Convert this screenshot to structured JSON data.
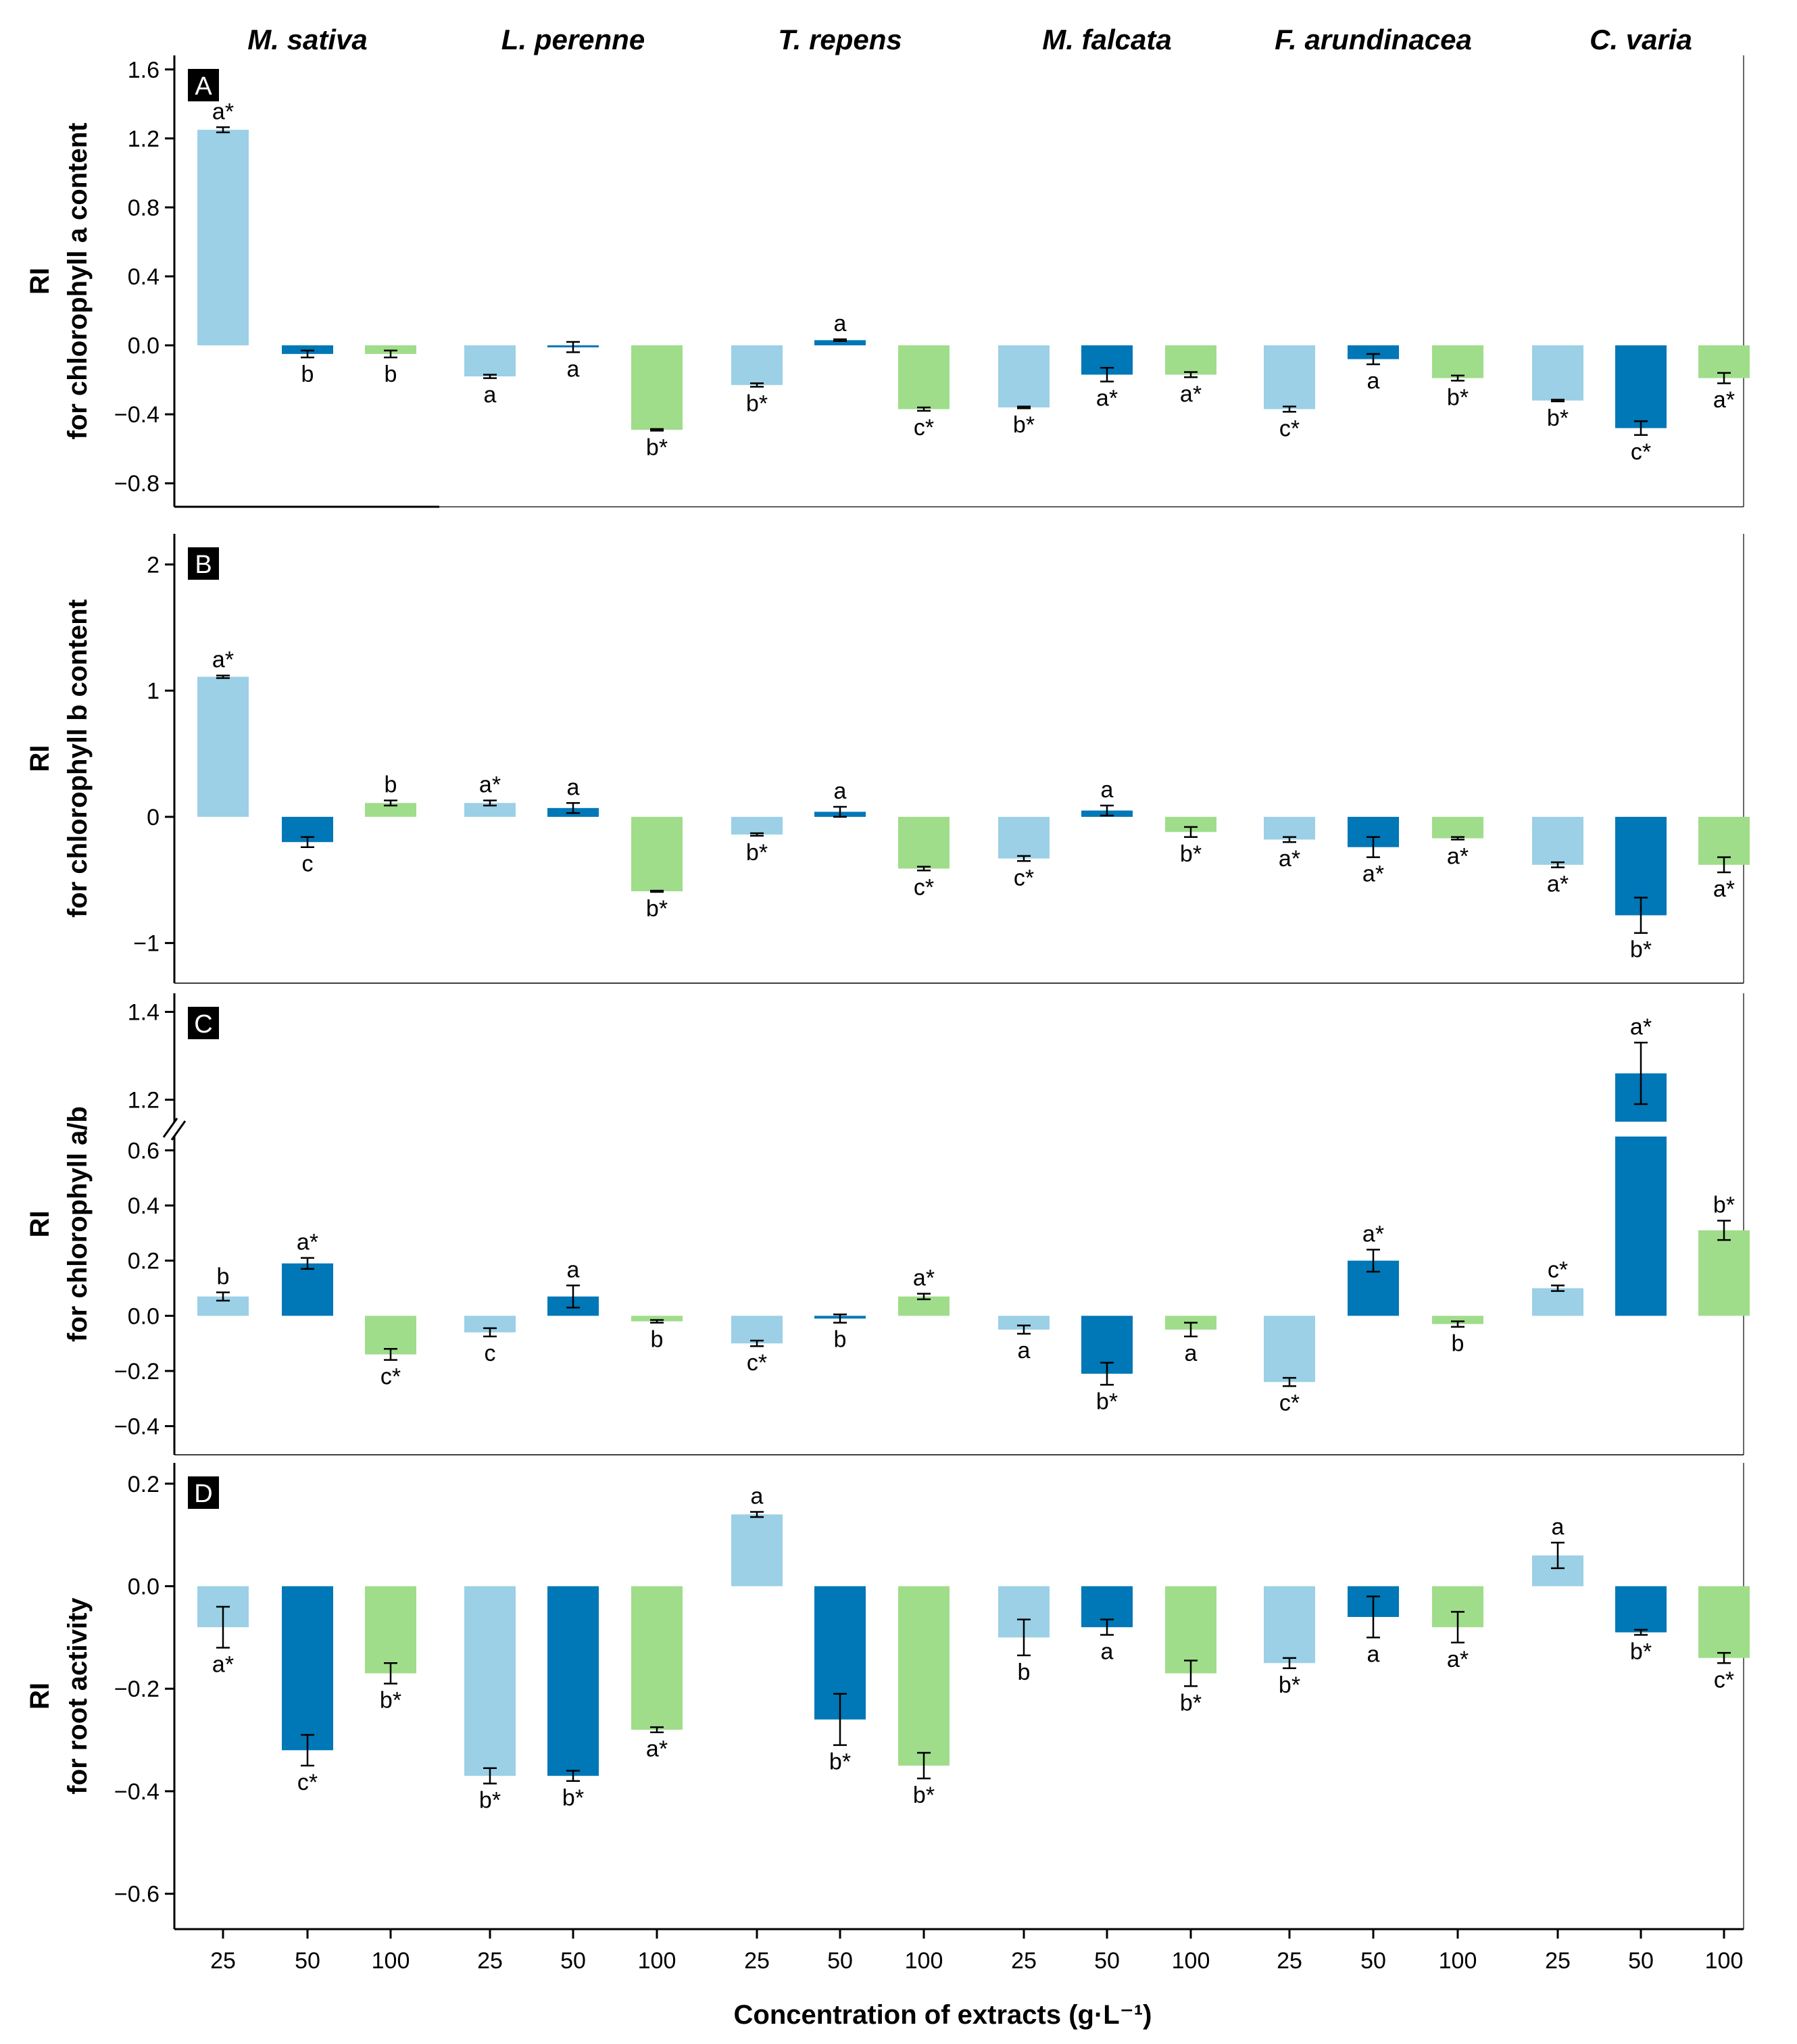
{
  "species": [
    "M. sativa",
    "L. perenne",
    "T. repens",
    "M. falcata",
    "F. arundinacea",
    "C. varia"
  ],
  "concentrations": [
    "25",
    "50",
    "100"
  ],
  "x_axis_label": "Concentration of extracts (g·L⁻¹)",
  "colors": {
    "c25": "#9bd0e6",
    "c50": "#0077b6",
    "c100": "#9fdd8a"
  },
  "chart_data": [
    {
      "type": "bar",
      "panel": "A",
      "ylabel": [
        "RI",
        "for chlorophyll a content"
      ],
      "ylim": [
        -0.85,
        1.65
      ],
      "yticks": [
        "1.6",
        "1.2",
        "0.8",
        "0.4",
        "0.0",
        "−0.4",
        "−0.8"
      ],
      "ytick_values": [
        1.6,
        1.2,
        0.8,
        0.4,
        0.0,
        -0.4,
        -0.8
      ],
      "values": [
        1.25,
        -0.05,
        -0.05,
        -0.18,
        -0.01,
        -0.49,
        -0.23,
        0.03,
        -0.37,
        -0.36,
        -0.17,
        -0.17,
        -0.37,
        -0.08,
        -0.19,
        -0.32,
        -0.48,
        -0.19
      ],
      "errors": [
        0.015,
        0.02,
        0.02,
        0.01,
        0.03,
        0.005,
        0.01,
        0.005,
        0.01,
        0.005,
        0.04,
        0.015,
        0.015,
        0.03,
        0.015,
        0.005,
        0.04,
        0.03
      ],
      "labels": [
        "a*",
        "b",
        "b",
        "a",
        "a",
        "b*",
        "b*",
        "a",
        "c*",
        "b*",
        "a*",
        "a*",
        "c*",
        "a",
        "b*",
        "b*",
        "c*",
        "a*"
      ]
    },
    {
      "type": "bar",
      "panel": "B",
      "ylabel": [
        "RI",
        "for chlorophyll b content"
      ],
      "ylim": [
        -1.2,
        2.2
      ],
      "yticks": [
        "2",
        "1",
        "0",
        "−1"
      ],
      "ytick_values": [
        2,
        1,
        0,
        -1
      ],
      "values": [
        1.11,
        -0.2,
        0.11,
        0.11,
        0.07,
        -0.59,
        -0.14,
        0.04,
        -0.41,
        -0.33,
        0.05,
        -0.12,
        -0.18,
        -0.24,
        -0.17,
        -0.38,
        -0.78,
        -0.38
      ],
      "errors": [
        0.01,
        0.04,
        0.02,
        0.02,
        0.04,
        0.005,
        0.01,
        0.04,
        0.015,
        0.02,
        0.04,
        0.04,
        0.02,
        0.08,
        0.01,
        0.02,
        0.14,
        0.06
      ],
      "labels": [
        "a*",
        "c",
        "b",
        "a*",
        "a",
        "b*",
        "b*",
        "a",
        "c*",
        "c*",
        "a",
        "b*",
        "a*",
        "a*",
        "a*",
        "a*",
        "b*",
        "a*"
      ]
    },
    {
      "type": "bar",
      "panel": "C",
      "ylabel": [
        "RI",
        "for chlorophyll a/b"
      ],
      "broken_axis": {
        "lower_max": 0.65,
        "upper_min": 1.15
      },
      "ylim": [
        -0.45,
        1.43
      ],
      "yticks": [
        "1.4",
        "1.2",
        "0.6",
        "0.4",
        "0.2",
        "0.0",
        "−0.2",
        "−0.4"
      ],
      "ytick_values": [
        1.4,
        1.2,
        0.6,
        0.4,
        0.2,
        0.0,
        -0.2,
        -0.4
      ],
      "values": [
        0.07,
        0.19,
        -0.14,
        -0.06,
        0.07,
        -0.02,
        -0.1,
        -0.01,
        0.07,
        -0.05,
        -0.21,
        -0.05,
        -0.24,
        0.2,
        -0.03,
        0.1,
        1.26,
        0.31
      ],
      "errors": [
        0.015,
        0.02,
        0.02,
        0.015,
        0.04,
        0.005,
        0.01,
        0.015,
        0.01,
        0.015,
        0.04,
        0.025,
        0.015,
        0.04,
        0.01,
        0.01,
        0.07,
        0.035
      ],
      "labels": [
        "b",
        "a*",
        "c*",
        "c",
        "a",
        "b",
        "c*",
        "b",
        "a*",
        "a",
        "b*",
        "a",
        "c*",
        "a*",
        "b",
        "c*",
        "a*",
        "b*"
      ]
    },
    {
      "type": "bar",
      "panel": "D",
      "ylabel": [
        "RI",
        "for root activity"
      ],
      "ylim": [
        -0.64,
        0.23
      ],
      "yticks": [
        "0.2",
        "0.0",
        "−0.2",
        "−0.4",
        "−0.6"
      ],
      "ytick_values": [
        0.2,
        0.0,
        -0.2,
        -0.4,
        -0.6
      ],
      "values": [
        -0.08,
        -0.32,
        -0.17,
        -0.37,
        -0.37,
        -0.28,
        0.14,
        -0.26,
        -0.35,
        -0.1,
        -0.08,
        -0.17,
        -0.15,
        -0.06,
        -0.08,
        0.06,
        -0.09,
        -0.14
      ],
      "errors": [
        0.04,
        0.03,
        0.02,
        0.015,
        0.01,
        0.005,
        0.005,
        0.05,
        0.025,
        0.035,
        0.015,
        0.025,
        0.01,
        0.04,
        0.03,
        0.025,
        0.005,
        0.01
      ],
      "labels": [
        "a*",
        "c*",
        "b*",
        "b*",
        "b*",
        "a*",
        "a",
        "b*",
        "b*",
        "b",
        "a",
        "b*",
        "b*",
        "a",
        "a*",
        "a",
        "b*",
        "c*"
      ]
    }
  ]
}
